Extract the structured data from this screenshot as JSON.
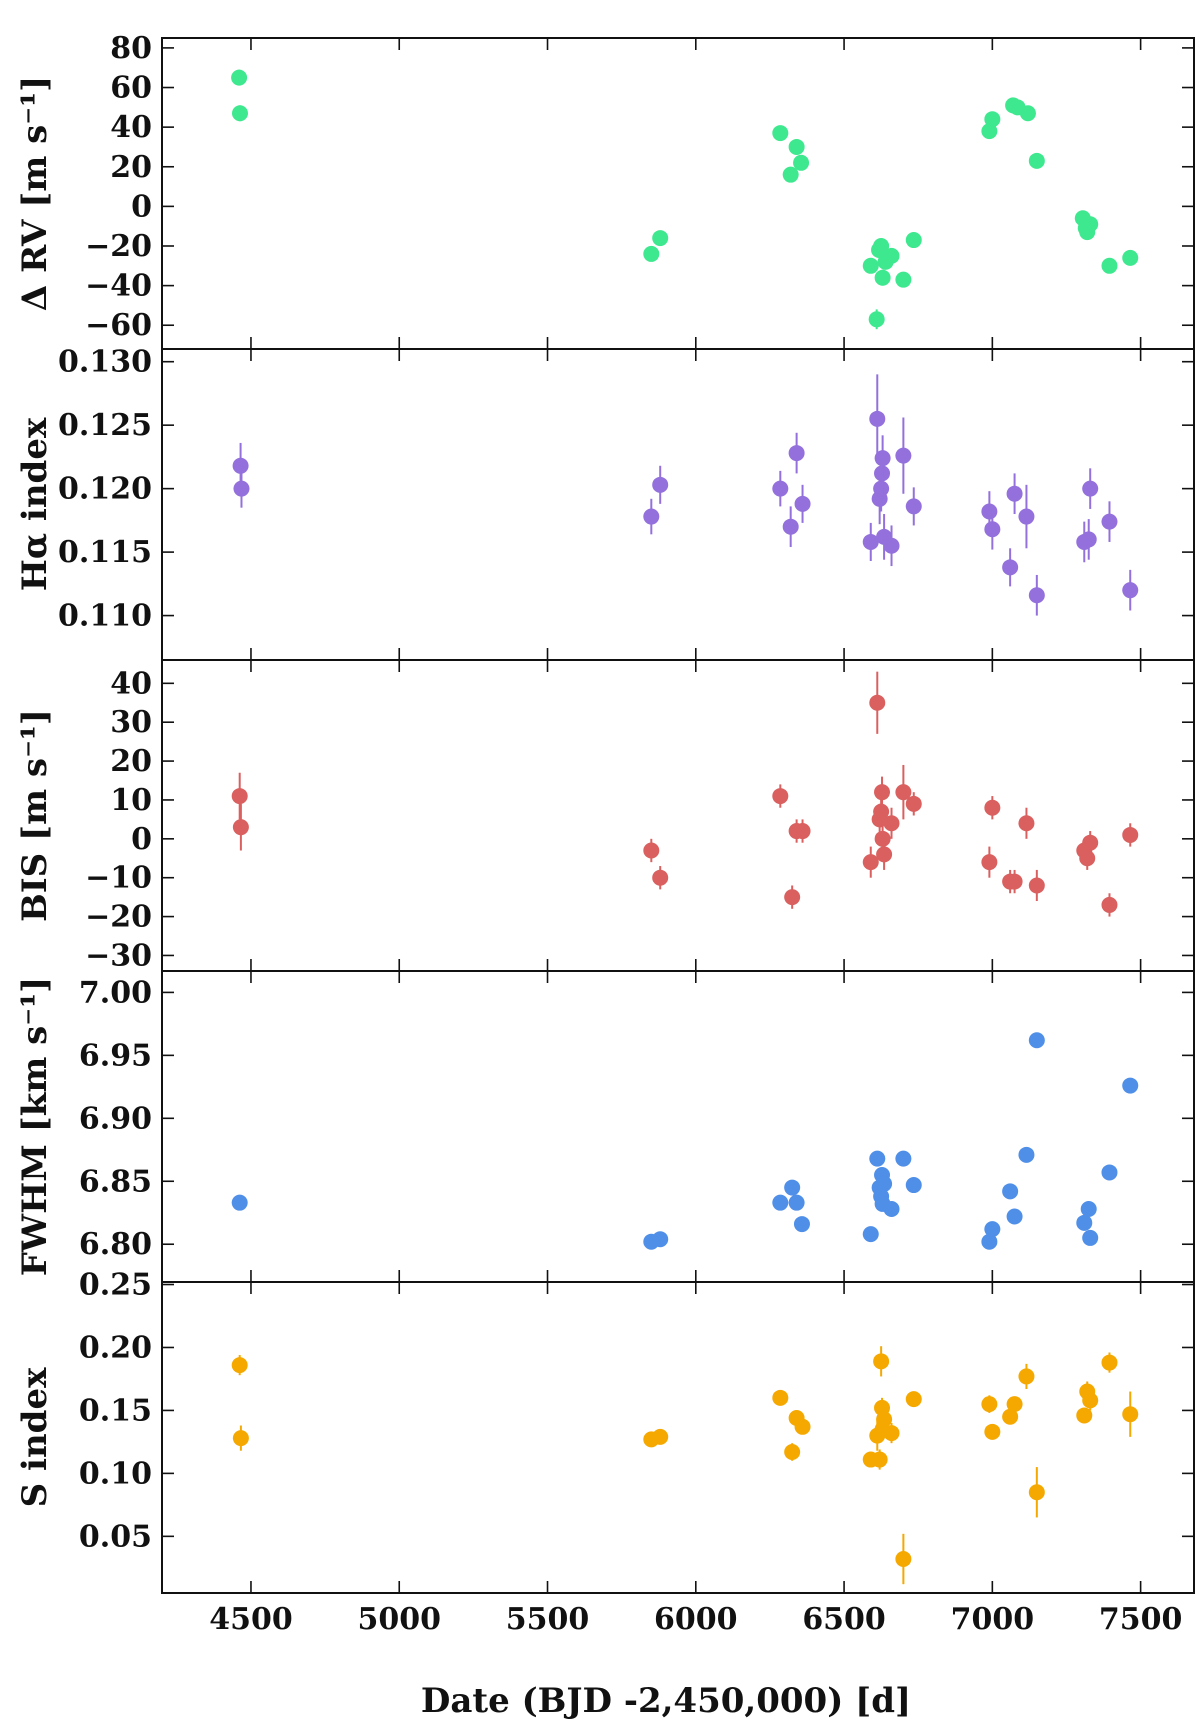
{
  "chart_data": {
    "type": "scatter",
    "xlabel": "Date (BJD -2,450,000) [d]",
    "xlim": [
      4200,
      7680
    ],
    "xticks": [
      4500,
      5000,
      5500,
      6000,
      6500,
      7000,
      7500
    ],
    "panels": [
      {
        "name": "delta-rv",
        "ylabel": "Δ RV [m s⁻¹]",
        "color": "#3ee88f",
        "ylim": [
          -72,
          85
        ],
        "yticks": [
          -60,
          -40,
          -20,
          0,
          20,
          40,
          60,
          80
        ],
        "points": [
          [
            4460,
            65,
            4
          ],
          [
            4463,
            47,
            4
          ],
          [
            5850,
            -24,
            3
          ],
          [
            5880,
            -16,
            3
          ],
          [
            6285,
            37,
            3
          ],
          [
            6320,
            16,
            3
          ],
          [
            6340,
            30,
            3
          ],
          [
            6355,
            22,
            3
          ],
          [
            6590,
            -30,
            3
          ],
          [
            6610,
            -57,
            5
          ],
          [
            6618,
            -22,
            3
          ],
          [
            6625,
            -20,
            3
          ],
          [
            6630,
            -36,
            4
          ],
          [
            6640,
            -28,
            3
          ],
          [
            6660,
            -25,
            3
          ],
          [
            6700,
            -37,
            3
          ],
          [
            6735,
            -17,
            3
          ],
          [
            6990,
            38,
            3
          ],
          [
            7000,
            44,
            3
          ],
          [
            7070,
            51,
            3
          ],
          [
            7085,
            50,
            3
          ],
          [
            7120,
            47,
            3
          ],
          [
            7150,
            23,
            3
          ],
          [
            7305,
            -6,
            3
          ],
          [
            7315,
            -11,
            3
          ],
          [
            7320,
            -13,
            3
          ],
          [
            7330,
            -9,
            3
          ],
          [
            7395,
            -30,
            3
          ],
          [
            7465,
            -26,
            3
          ]
        ]
      },
      {
        "name": "h-alpha-index",
        "ylabel": "Hα index",
        "color": "#9370db",
        "ylim": [
          0.1065,
          0.131
        ],
        "yticks": [
          0.11,
          0.115,
          0.12,
          0.125,
          0.13
        ],
        "points": [
          [
            4465,
            0.1218,
            0.0018
          ],
          [
            4468,
            0.12,
            0.0015
          ],
          [
            5850,
            0.1178,
            0.0014
          ],
          [
            5880,
            0.1203,
            0.0015
          ],
          [
            6285,
            0.12,
            0.0014
          ],
          [
            6320,
            0.117,
            0.0016
          ],
          [
            6340,
            0.1228,
            0.0016
          ],
          [
            6360,
            0.1188,
            0.0015
          ],
          [
            6590,
            0.1158,
            0.0015
          ],
          [
            6612,
            0.1255,
            0.0035
          ],
          [
            6620,
            0.1192,
            0.002
          ],
          [
            6625,
            0.12,
            0.0018
          ],
          [
            6628,
            0.1212,
            0.0018
          ],
          [
            6630,
            0.1224,
            0.0018
          ],
          [
            6635,
            0.1162,
            0.0018
          ],
          [
            6660,
            0.1155,
            0.0016
          ],
          [
            6700,
            0.1226,
            0.003
          ],
          [
            6735,
            0.1186,
            0.0015
          ],
          [
            6990,
            0.1182,
            0.0016
          ],
          [
            7000,
            0.1168,
            0.0016
          ],
          [
            7060,
            0.1138,
            0.0015
          ],
          [
            7075,
            0.1196,
            0.0016
          ],
          [
            7115,
            0.1178,
            0.0025
          ],
          [
            7150,
            0.1116,
            0.0016
          ],
          [
            7310,
            0.1158,
            0.0016
          ],
          [
            7325,
            0.116,
            0.0016
          ],
          [
            7330,
            0.12,
            0.0016
          ],
          [
            7395,
            0.1174,
            0.0016
          ],
          [
            7465,
            0.112,
            0.0016
          ]
        ]
      },
      {
        "name": "bis",
        "ylabel": "BIS [m s⁻¹]",
        "color": "#d9605f",
        "ylim": [
          -34,
          46
        ],
        "yticks": [
          -30,
          -20,
          -10,
          0,
          10,
          20,
          30,
          40
        ],
        "points": [
          [
            4462,
            11,
            6
          ],
          [
            4466,
            3,
            6
          ],
          [
            5850,
            -3,
            3
          ],
          [
            5880,
            -10,
            3
          ],
          [
            6285,
            11,
            3
          ],
          [
            6325,
            -15,
            3
          ],
          [
            6340,
            2,
            3
          ],
          [
            6360,
            2,
            3
          ],
          [
            6590,
            -6,
            4
          ],
          [
            6612,
            35,
            8
          ],
          [
            6620,
            5,
            4
          ],
          [
            6625,
            7,
            4
          ],
          [
            6628,
            12,
            4
          ],
          [
            6630,
            0,
            4
          ],
          [
            6635,
            -4,
            4
          ],
          [
            6660,
            4,
            4
          ],
          [
            6700,
            12,
            7
          ],
          [
            6735,
            9,
            3
          ],
          [
            6990,
            -6,
            4
          ],
          [
            7000,
            8,
            3
          ],
          [
            7060,
            -11,
            3
          ],
          [
            7075,
            -11,
            3
          ],
          [
            7115,
            4,
            4
          ],
          [
            7150,
            -12,
            4
          ],
          [
            7310,
            -3,
            3
          ],
          [
            7320,
            -5,
            3
          ],
          [
            7330,
            -1,
            3
          ],
          [
            7395,
            -17,
            3
          ],
          [
            7465,
            1,
            3
          ]
        ]
      },
      {
        "name": "fwhm",
        "ylabel": "FWHM [km s⁻¹]",
        "color": "#4f8fe8",
        "ylim": [
          6.77,
          7.017
        ],
        "yticks": [
          6.8,
          6.85,
          6.9,
          6.95,
          7.0
        ],
        "points": [
          [
            4462,
            6.833,
            0.003
          ],
          [
            5850,
            6.802,
            0.002
          ],
          [
            5880,
            6.804,
            0.002
          ],
          [
            6285,
            6.833,
            0.002
          ],
          [
            6325,
            6.845,
            0.002
          ],
          [
            6340,
            6.833,
            0.002
          ],
          [
            6358,
            6.816,
            0.002
          ],
          [
            6590,
            6.808,
            0.002
          ],
          [
            6612,
            6.868,
            0.003
          ],
          [
            6620,
            6.845,
            0.003
          ],
          [
            6625,
            6.838,
            0.003
          ],
          [
            6628,
            6.855,
            0.003
          ],
          [
            6630,
            6.832,
            0.003
          ],
          [
            6635,
            6.848,
            0.003
          ],
          [
            6660,
            6.828,
            0.003
          ],
          [
            6700,
            6.868,
            0.003
          ],
          [
            6735,
            6.847,
            0.003
          ],
          [
            6990,
            6.802,
            0.002
          ],
          [
            7000,
            6.812,
            0.002
          ],
          [
            7060,
            6.842,
            0.002
          ],
          [
            7075,
            6.822,
            0.002
          ],
          [
            7115,
            6.871,
            0.003
          ],
          [
            7150,
            6.962,
            0.003
          ],
          [
            7310,
            6.817,
            0.002
          ],
          [
            7325,
            6.828,
            0.002
          ],
          [
            7330,
            6.805,
            0.002
          ],
          [
            7395,
            6.857,
            0.002
          ],
          [
            7465,
            6.926,
            0.003
          ]
        ]
      },
      {
        "name": "s-index",
        "ylabel": "S index",
        "color": "#f5a800",
        "ylim": [
          0.005,
          0.252
        ],
        "yticks": [
          0.05,
          0.1,
          0.15,
          0.2,
          0.25
        ],
        "points": [
          [
            4462,
            0.186,
            0.008
          ],
          [
            4466,
            0.128,
            0.01
          ],
          [
            5850,
            0.127,
            0.006
          ],
          [
            5880,
            0.129,
            0.006
          ],
          [
            6285,
            0.16,
            0.006
          ],
          [
            6325,
            0.117,
            0.007
          ],
          [
            6340,
            0.144,
            0.006
          ],
          [
            6360,
            0.137,
            0.006
          ],
          [
            6590,
            0.111,
            0.006
          ],
          [
            6612,
            0.13,
            0.012
          ],
          [
            6620,
            0.111,
            0.008
          ],
          [
            6625,
            0.189,
            0.012
          ],
          [
            6628,
            0.152,
            0.008
          ],
          [
            6630,
            0.135,
            0.008
          ],
          [
            6635,
            0.143,
            0.008
          ],
          [
            6660,
            0.132,
            0.008
          ],
          [
            6700,
            0.032,
            0.02
          ],
          [
            6735,
            0.159,
            0.006
          ],
          [
            6990,
            0.155,
            0.007
          ],
          [
            7000,
            0.133,
            0.006
          ],
          [
            7060,
            0.145,
            0.006
          ],
          [
            7075,
            0.155,
            0.006
          ],
          [
            7115,
            0.177,
            0.01
          ],
          [
            7150,
            0.085,
            0.02
          ],
          [
            7310,
            0.146,
            0.006
          ],
          [
            7320,
            0.165,
            0.008
          ],
          [
            7330,
            0.158,
            0.008
          ],
          [
            7395,
            0.188,
            0.008
          ],
          [
            7465,
            0.147,
            0.018
          ]
        ]
      }
    ]
  }
}
